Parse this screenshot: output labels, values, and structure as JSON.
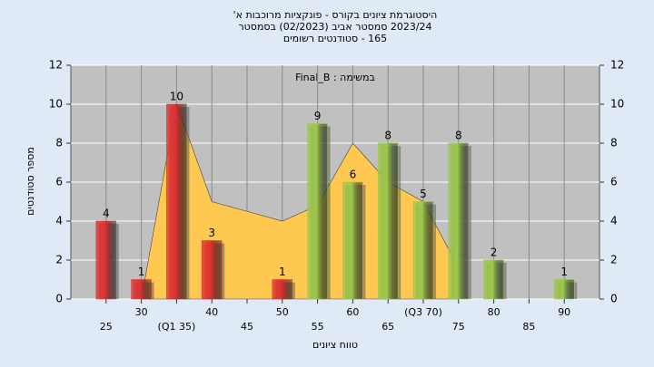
{
  "chart_data": {
    "type": "bar",
    "title": [
      "היסטוגרמת ציונים בקורס - פונקציות מרוכבות א'",
      "2023/24 סמסטר אביב (02/2023) בסמסטר",
      "165 - סטודנטים רשומים"
    ],
    "annotation": "במשימה : Final_B",
    "xlabel": "טווח ציונים",
    "ylabel": "מספר סטודנטים",
    "categories": [
      "25",
      "30",
      "(Q1 35)",
      "40",
      "45",
      "50",
      "55",
      "60",
      "65",
      "(Q3 70)",
      "75",
      "80",
      "85",
      "90"
    ],
    "values": [
      4,
      1,
      10,
      3,
      0,
      1,
      9,
      6,
      8,
      5,
      8,
      2,
      0,
      1
    ],
    "colors": [
      "#e03030",
      "#e03030",
      "#e03030",
      "#e03030",
      "#e03030",
      "#e03030",
      "#9cc84a",
      "#9cc84a",
      "#9cc84a",
      "#9cc84a",
      "#9cc84a",
      "#9cc84a",
      "#9cc84a",
      "#9cc84a"
    ],
    "area": {
      "color": "#ffc851",
      "values": [
        null,
        0,
        10,
        5,
        4.5,
        4,
        4.8,
        8,
        6,
        5,
        1.6,
        null,
        null,
        null
      ]
    },
    "ylim": [
      0,
      12
    ],
    "yticks": [
      0,
      2,
      4,
      6,
      8,
      10,
      12
    ],
    "y2lim": [
      0,
      12
    ],
    "y2ticks": [
      0,
      2,
      4,
      6,
      8,
      10,
      12
    ],
    "grid": true
  }
}
